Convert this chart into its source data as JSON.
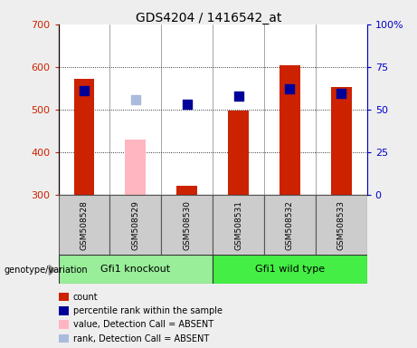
{
  "title": "GDS4204 / 1416542_at",
  "samples": [
    "GSM508528",
    "GSM508529",
    "GSM508530",
    "GSM508531",
    "GSM508532",
    "GSM508533"
  ],
  "count_values": [
    572,
    null,
    322,
    498,
    605,
    552
  ],
  "count_absent_values": [
    null,
    430,
    null,
    null,
    null,
    null
  ],
  "rank_values": [
    545,
    null,
    513,
    532,
    548,
    538
  ],
  "rank_absent_values": [
    null,
    523,
    null,
    null,
    null,
    null
  ],
  "ymin": 300,
  "ymax": 700,
  "yticks": [
    300,
    400,
    500,
    600,
    700
  ],
  "right_tick_positions": [
    300,
    400,
    500,
    600,
    700
  ],
  "right_tick_labels": [
    "0",
    "25",
    "50",
    "75",
    "100%"
  ],
  "bar_color": "#cc2200",
  "bar_absent_color": "#ffb6c1",
  "square_color": "#000099",
  "square_absent_color": "#aabbdd",
  "left_tick_color": "#cc2200",
  "right_tick_color": "#0000cc",
  "background_color": "#eeeeee",
  "plot_bg_color": "#ffffff",
  "bar_width": 0.4,
  "square_size": 50,
  "group_ko_color": "#99ee99",
  "group_wt_color": "#44ee44",
  "gray_box_color": "#cccccc",
  "legend_items": [
    {
      "color": "#cc2200",
      "label": "count"
    },
    {
      "color": "#000099",
      "label": "percentile rank within the sample"
    },
    {
      "color": "#ffb6c1",
      "label": "value, Detection Call = ABSENT"
    },
    {
      "color": "#aabbdd",
      "label": "rank, Detection Call = ABSENT"
    }
  ]
}
